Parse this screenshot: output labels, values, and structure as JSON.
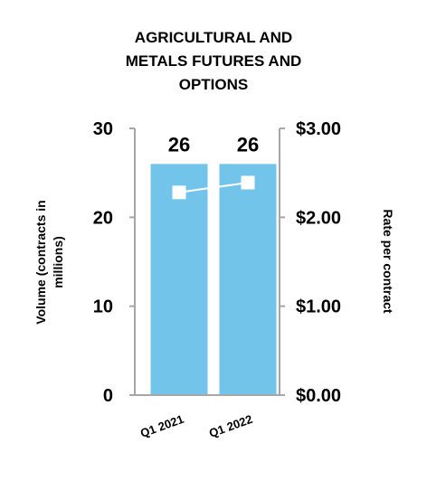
{
  "chart_data": {
    "type": "bar",
    "title_lines": [
      "AGRICULTURAL AND",
      "METALS FUTURES AND",
      "OPTIONS"
    ],
    "categories": [
      "Q1 2021",
      "Q1 2022"
    ],
    "series": [
      {
        "type": "bar",
        "axis": "left",
        "values": [
          26,
          26
        ],
        "data_labels": [
          "26",
          "26"
        ]
      },
      {
        "type": "line",
        "axis": "right",
        "values": [
          2.28,
          2.39
        ]
      }
    ],
    "ylabel_left_lines": [
      "Volume (contracts in",
      "millions)"
    ],
    "ylabel_right": "Rate per contract",
    "ylim_left": [
      0,
      30
    ],
    "ylim_right": [
      0,
      3
    ],
    "yticks_left": [
      "0",
      "10",
      "20",
      "30"
    ],
    "yticks_right": [
      "$0.00",
      "$1.00",
      "$2.00",
      "$3.00"
    ],
    "grid": false,
    "colors": {
      "bar": "#73c4ea",
      "line": "#ffffff",
      "marker": "#ffffff",
      "axis": "#a6a6a6"
    }
  }
}
